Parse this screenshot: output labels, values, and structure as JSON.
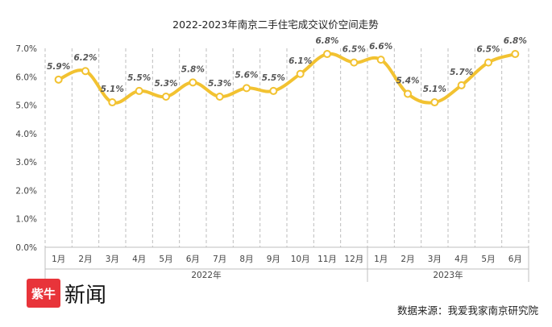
{
  "chart_data": {
    "type": "line",
    "title": "2022-2023年南京二手住宅成交议价空间走势",
    "categories": [
      "1月",
      "2月",
      "3月",
      "4月",
      "5月",
      "6月",
      "7月",
      "8月",
      "9月",
      "10月",
      "11月",
      "12月",
      "1月",
      "2月",
      "3月",
      "4月",
      "5月",
      "6月"
    ],
    "groups": [
      {
        "label": "2022年",
        "count": 12
      },
      {
        "label": "2023年",
        "count": 6
      }
    ],
    "series": [
      {
        "values": [
          5.9,
          6.2,
          5.1,
          5.5,
          5.3,
          5.8,
          5.3,
          5.6,
          5.5,
          6.1,
          6.8,
          6.5,
          6.6,
          5.4,
          5.1,
          5.7,
          6.5,
          6.8
        ],
        "labels": [
          "5.9%",
          "6.2%",
          "5.1%",
          "5.5%",
          "5.3%",
          "5.8%",
          "5.3%",
          "5.6%",
          "5.5%",
          "6.1%",
          "6.8%",
          "6.5%",
          "6.6%",
          "5.4%",
          "5.1%",
          "5.7%",
          "6.5%",
          "6.8%"
        ]
      }
    ],
    "ylim": [
      0,
      7
    ],
    "yticks": [
      0,
      1,
      2,
      3,
      4,
      5,
      6,
      7
    ],
    "ytick_labels": [
      "0.0%",
      "1.0%",
      "2.0%",
      "3.0%",
      "4.0%",
      "5.0%",
      "6.0%",
      "7.0%"
    ],
    "grid": "vertical-dashed",
    "line_color": "#F2C231",
    "marker_color": "#FFFFFF"
  },
  "footer": {
    "source": "数据来源：我爱我家南京研究院",
    "logo_badge": "紫牛",
    "logo_text": "新闻",
    "logo_color": "#E8343A"
  }
}
